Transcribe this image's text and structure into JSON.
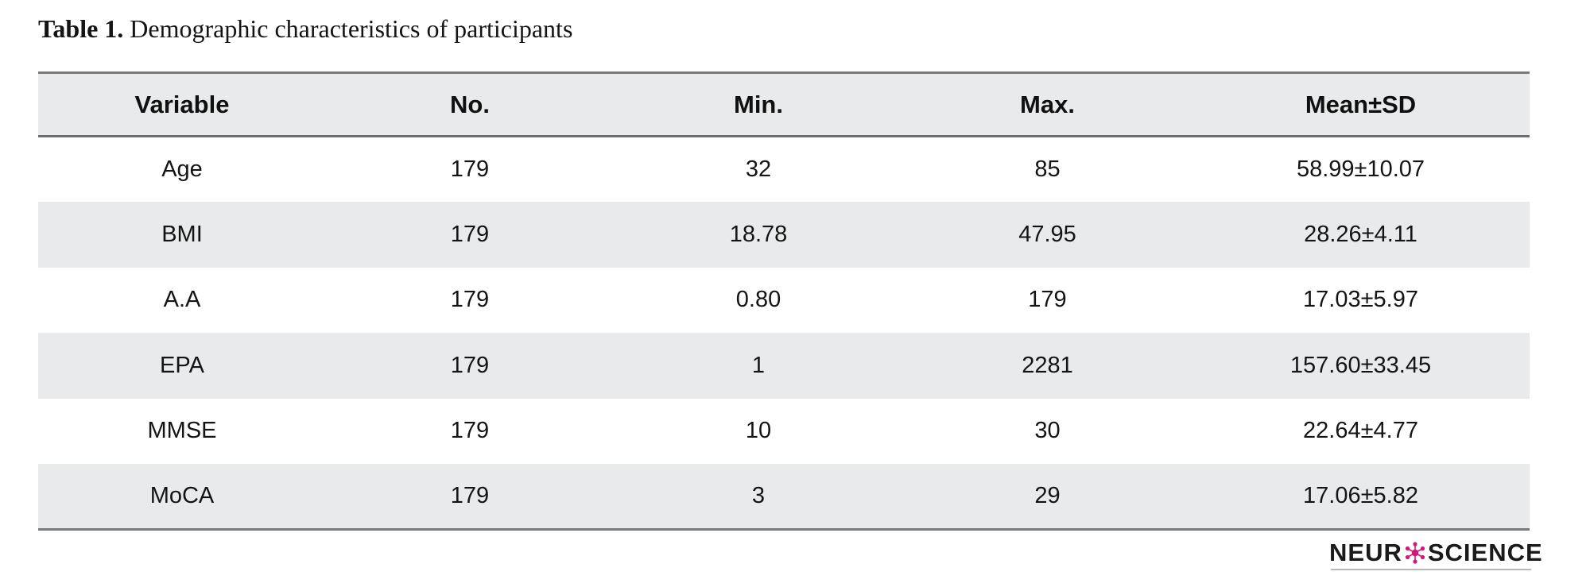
{
  "caption": {
    "label": "Table 1.",
    "text": "Demographic characteristics of participants"
  },
  "table": {
    "columns": [
      "Variable",
      "No.",
      "Min.",
      "Max.",
      "Mean±SD"
    ],
    "rows": [
      [
        "Age",
        "179",
        "32",
        "85",
        "58.99±10.07"
      ],
      [
        "BMI",
        "179",
        "18.78",
        "47.95",
        "28.26±4.11"
      ],
      [
        "A.A",
        "179",
        "0.80",
        "179",
        "17.03±5.97"
      ],
      [
        "EPA",
        "179",
        "1",
        "2281",
        "157.60±33.45"
      ],
      [
        "MMSE",
        "179",
        "10",
        "30",
        "22.64±4.77"
      ],
      [
        "MoCA",
        "179",
        "3",
        "29",
        "17.06±5.82"
      ]
    ]
  },
  "logo": {
    "text_left": "NEUR",
    "text_right": "SCIENCE",
    "accent_color": "#d6157d"
  }
}
